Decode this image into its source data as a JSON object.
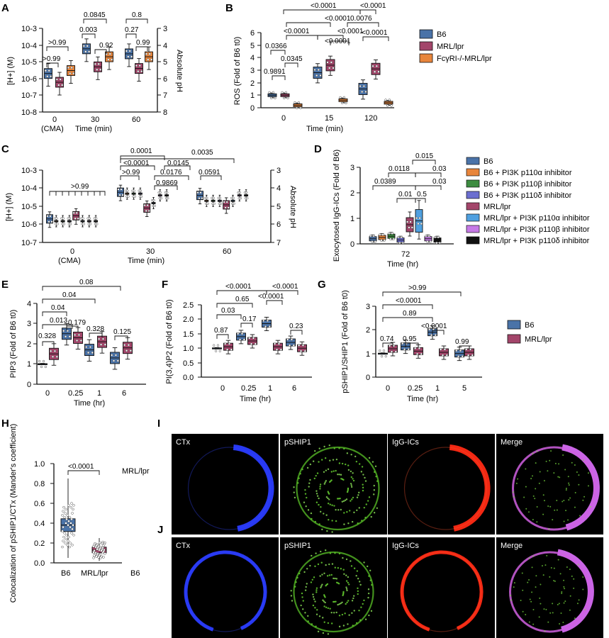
{
  "figure": {
    "panel_labels": [
      "A",
      "B",
      "C",
      "D",
      "E",
      "F",
      "G",
      "H",
      "I",
      "J"
    ],
    "colors": {
      "B6": "#4a73a8",
      "MRL": "#a3456a",
      "FcgRI": "#e8853b",
      "p110a": "#e8853b",
      "p110b": "#3d8c40",
      "p110d": "#6b6ed0",
      "MRL_p110a": "#4fa0e0",
      "MRL_p110b": "#c67ae6",
      "MRL_p110d": "#111111"
    },
    "legend_top": [
      "B6",
      "MRL/lpr",
      "FcγRI-/-MRL/lpr"
    ],
    "legend_d": [
      "B6",
      "B6 + PI3K p110α inhibitor",
      "B6 + PI3K p110β inhibitor",
      "B6 + PI3K p110δ inhibitor",
      "MRL/lpr",
      "MRL/lpr + PI3K p110α inhibitor",
      "MRL/lpr + PI3K p110β inhibitor",
      "MRL/lpr + PI3K p110δ inhibitor"
    ],
    "legend_eg": [
      "B6",
      "MRL/lpr"
    ],
    "micro_rows": [
      "MRL/lpr",
      "B6"
    ],
    "micro_cols": [
      "CTx",
      "pSHIP1",
      "IgG-ICs",
      "Merge"
    ]
  },
  "chart_data": [
    {
      "panel": "A",
      "type": "box",
      "ylabel": "[H+] (M)",
      "y2label": "Absolute pH",
      "xlabel": "Time (min)",
      "categories": [
        "0",
        "30",
        "60"
      ],
      "xsub": "(CMA)",
      "yticks": [
        "10-3",
        "10-4",
        "10-5",
        "10-6",
        "10-7",
        "10-8"
      ],
      "y2ticks": [
        "3",
        "4",
        "5",
        "6",
        "7",
        "8"
      ],
      "series": [
        {
          "name": "B6",
          "medians": [
            2e-06,
            6e-05,
            3e-05
          ]
        },
        {
          "name": "MRL/lpr",
          "medians": [
            6e-07,
            5e-06,
            4e-06
          ]
        },
        {
          "name": "FcγRI-/-MRL/lpr",
          "medians": [
            3e-06,
            2e-05,
            2e-05
          ]
        }
      ],
      "pvalues": [
        ">0.99",
        ">0.99",
        "0.003",
        "0.0845",
        "0.92",
        "0.27",
        "0.8",
        "0.99"
      ]
    },
    {
      "panel": "B",
      "type": "box",
      "ylabel": "ROS (Fold of B6 t0)",
      "xlabel": "Time (min)",
      "categories": [
        "0",
        "15",
        "120"
      ],
      "ylim": [
        0,
        6
      ],
      "yticks": [
        "0",
        "1",
        "2",
        "3",
        "4",
        "5",
        "6"
      ],
      "series": [
        {
          "name": "B6",
          "medians": [
            1,
            2.8,
            1.5
          ]
        },
        {
          "name": "MRL/lpr",
          "medians": [
            1,
            3.4,
            3.1
          ]
        },
        {
          "name": "FcγRI-/-MRL/lpr",
          "medians": [
            0.2,
            0.6,
            0.4
          ]
        }
      ],
      "pvalues": [
        "<0.0001",
        "<0.0001",
        "<0.0001",
        "<0.0001",
        "<0.0001",
        "0.0076",
        "0.0366",
        "<0.0001",
        "<0.0001",
        "0.0345",
        "0.9891"
      ]
    },
    {
      "panel": "C",
      "type": "box",
      "ylabel": "[H+] (M)",
      "y2label": "Absolute pH",
      "xlabel": "Time (min)",
      "categories": [
        "0",
        "30",
        "60"
      ],
      "xsub": "(CMA)",
      "yticks": [
        "10-3",
        "10-4",
        "10-5",
        "10-6",
        "10-7"
      ],
      "y2ticks": [
        "3",
        "4",
        "5",
        "6",
        "7"
      ],
      "pvalues": [
        ">0.99",
        "0.0001",
        "<0.0001",
        "0.0145",
        "0.0035",
        ">0.99",
        "0.0176",
        "0.0591",
        "0.9869"
      ]
    },
    {
      "panel": "D",
      "type": "box",
      "ylabel": "Exocytosed IgG-ICs (Fold of B6)",
      "xlabel": "Time (hr)",
      "categories": [
        "72"
      ],
      "ylim": [
        0,
        3
      ],
      "yticks": [
        "0",
        "1",
        "2",
        "3"
      ],
      "series": [
        {
          "name": "B6",
          "medians": [
            0.2
          ]
        },
        {
          "name": "B6 + PI3K p110α inhibitor",
          "medians": [
            0.25
          ]
        },
        {
          "name": "B6 + PI3K p110β inhibitor",
          "medians": [
            0.3
          ]
        },
        {
          "name": "B6 + PI3K p110δ inhibitor",
          "medians": [
            0.15
          ]
        },
        {
          "name": "MRL/lpr",
          "medians": [
            0.75
          ]
        },
        {
          "name": "MRL/lpr + PI3K p110α inhibitor",
          "medians": [
            0.9
          ]
        },
        {
          "name": "MRL/lpr + PI3K p110β inhibitor",
          "medians": [
            0.2
          ]
        },
        {
          "name": "MRL/lpr + PI3K p110δ inhibitor",
          "medians": [
            0.15
          ]
        }
      ],
      "pvalues": [
        "0.015",
        "0.0118",
        "0.03",
        "0.0389",
        "0.03",
        "0.01",
        "0.5"
      ]
    },
    {
      "panel": "E",
      "type": "box",
      "ylabel": "PIP3 (Fold of B6 t0)",
      "xlabel": "Time (hr)",
      "categories": [
        "0",
        "0.25",
        "1",
        "6"
      ],
      "ylim": [
        0,
        4
      ],
      "yticks": [
        "0",
        "1",
        "2",
        "3",
        "4"
      ],
      "series": [
        {
          "name": "B6",
          "medians": [
            1,
            2.5,
            1.7,
            1.3
          ]
        },
        {
          "name": "MRL/lpr",
          "medians": [
            1.5,
            2.3,
            2.1,
            1.8
          ]
        }
      ],
      "pvalues": [
        "0.08",
        "0.04",
        "0.04",
        "0.013",
        "0.179",
        "0.328",
        "0.328",
        "0.125"
      ]
    },
    {
      "panel": "F",
      "type": "box",
      "ylabel": "PI(3,4)P2 (Fold of B6 t0)",
      "xlabel": "Time (hr)",
      "categories": [
        "0",
        "0.25",
        "1",
        "6"
      ],
      "ylim": [
        0,
        2.5
      ],
      "yticks": [
        "0.0",
        "0.5",
        "1.0",
        "1.5",
        "2.0",
        "2.5"
      ],
      "series": [
        {
          "name": "B6",
          "medians": [
            1.0,
            1.4,
            1.85,
            1.2
          ]
        },
        {
          "name": "MRL/lpr",
          "medians": [
            1.05,
            1.25,
            1.05,
            1.0
          ]
        }
      ],
      "pvalues": [
        "<0.0001",
        "<0.0001",
        "0.65",
        "<0.0001",
        "0.03",
        "0.17",
        "0.87",
        "0.23"
      ]
    },
    {
      "panel": "G",
      "type": "box",
      "ylabel": "pSHIP1/SHIP1 (Fold of B6 t0)",
      "xlabel": "Time (hr)",
      "categories": [
        "0",
        "0.25",
        "1",
        "5"
      ],
      "ylim": [
        0,
        3
      ],
      "yticks": [
        "0",
        "1",
        "2",
        "3"
      ],
      "series": [
        {
          "name": "B6",
          "medians": [
            1,
            1.3,
            1.9,
            1.0
          ]
        },
        {
          "name": "MRL/lpr",
          "medians": [
            1.2,
            1.1,
            1.05,
            1.05
          ]
        }
      ],
      "pvalues": [
        ">0.99",
        "<0.0001",
        "0.89",
        "<0.0001",
        "0.74",
        "0.95",
        "0.99"
      ]
    },
    {
      "panel": "H",
      "type": "box",
      "ylabel": "Colocalization of pSHIP1/CTx (Mander's coefficient)",
      "categories": [
        "B6",
        "MRL/lpr"
      ],
      "ylim": [
        0,
        1
      ],
      "yticks": [
        "0.0",
        "0.2",
        "0.4",
        "0.6",
        "0.8",
        "1.0"
      ],
      "medians": [
        0.38,
        0.13
      ],
      "pvalues": [
        "<0.0001"
      ]
    }
  ]
}
